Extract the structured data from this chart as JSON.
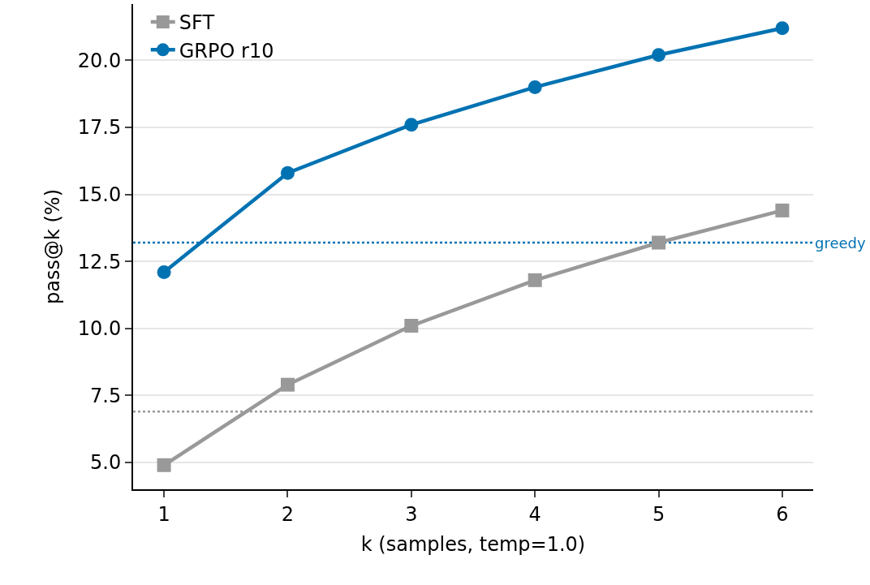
{
  "chart_data": {
    "type": "line",
    "xlabel": "k (samples, temp=1.0)",
    "ylabel": "pass@k (%)",
    "x": [
      1,
      2,
      3,
      4,
      5,
      6
    ],
    "series": [
      {
        "name": "SFT",
        "color": "#999999",
        "marker": "square",
        "values": [
          4.9,
          7.9,
          10.1,
          11.8,
          13.2,
          14.4
        ]
      },
      {
        "name": "GRPO r10",
        "color": "#0072b2",
        "marker": "circle",
        "values": [
          12.1,
          15.8,
          17.6,
          19.0,
          20.2,
          21.2
        ]
      }
    ],
    "ref_lines": [
      {
        "axis": "y",
        "value": 13.2,
        "label": "greedy",
        "color": "#0072b2",
        "line_style": "dotted"
      },
      {
        "axis": "y",
        "value": 6.9,
        "label": null,
        "color": "#999999",
        "line_style": "dotted"
      }
    ],
    "xlim": [
      0.75,
      6.25
    ],
    "xticks": [
      1,
      2,
      3,
      4,
      5,
      6
    ],
    "ylim": [
      4.0,
      22.1
    ],
    "yticks": [
      {
        "value": 5,
        "label": "5.0"
      },
      {
        "value": 7.5,
        "label": "7.5"
      },
      {
        "value": 10,
        "label": "10.0"
      },
      {
        "value": 12.5,
        "label": "12.5"
      },
      {
        "value": 15,
        "label": "15.0"
      },
      {
        "value": 17.5,
        "label": "17.5"
      },
      {
        "value": 20,
        "label": "20.0"
      }
    ],
    "grid": "y",
    "legend": "top left"
  }
}
